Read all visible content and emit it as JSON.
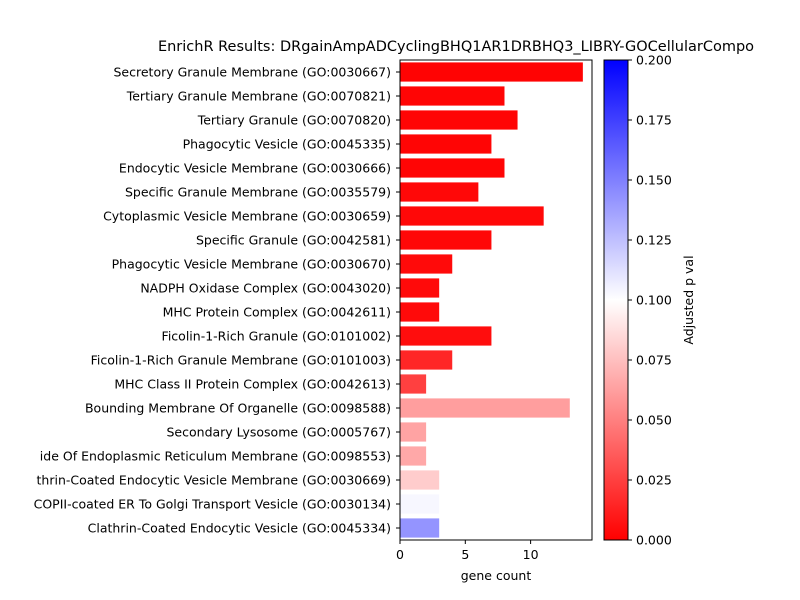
{
  "chart_data": {
    "type": "bar",
    "orientation": "horizontal",
    "title": "EnrichR Results: DRgainAmpADCyclingBHQ1AR1DRBHQ3_LIBRY-GOCellularCompo",
    "xlabel": "gene count",
    "ylabel": "",
    "xlim": [
      0,
      14.7
    ],
    "xticks": [
      0,
      5,
      10
    ],
    "grid": false,
    "categories": [
      "Secretory Granule Membrane (GO:0030667)",
      "Tertiary Granule Membrane (GO:0070821)",
      "Tertiary Granule (GO:0070820)",
      "Phagocytic Vesicle (GO:0045335)",
      "Endocytic Vesicle Membrane (GO:0030666)",
      "Specific Granule Membrane (GO:0035579)",
      "Cytoplasmic Vesicle Membrane (GO:0030659)",
      "Specific Granule (GO:0042581)",
      "Phagocytic Vesicle Membrane (GO:0030670)",
      "NADPH Oxidase Complex (GO:0043020)",
      "MHC Protein Complex (GO:0042611)",
      "Ficolin-1-Rich Granule (GO:0101002)",
      "Ficolin-1-Rich Granule Membrane (GO:0101003)",
      "MHC Class II Protein Complex (GO:0042613)",
      "Bounding Membrane Of Organelle (GO:0098588)",
      "Secondary Lysosome (GO:0005767)",
      "ide Of Endoplasmic Reticulum Membrane (GO:0098553)",
      "thrin-Coated Endocytic Vesicle Membrane (GO:0030669)",
      "COPII-coated ER To Golgi Transport Vesicle (GO:0030134)",
      "Clathrin-Coated Endocytic Vesicle (GO:0045334)"
    ],
    "values": [
      14,
      8,
      9,
      7,
      8,
      6,
      11,
      7,
      4,
      3,
      3,
      7,
      4,
      2,
      13,
      2,
      2,
      3,
      3,
      3
    ],
    "adjusted_p": [
      0.001,
      0.002,
      0.002,
      0.002,
      0.002,
      0.003,
      0.003,
      0.003,
      0.004,
      0.004,
      0.004,
      0.005,
      0.015,
      0.025,
      0.062,
      0.064,
      0.066,
      0.08,
      0.103,
      0.142
    ],
    "colorbar": {
      "label": "Adjusted p val",
      "min": 0.0,
      "max": 0.2,
      "colormap": "bwr_r",
      "ticks": [
        "0.000",
        "0.025",
        "0.050",
        "0.075",
        "0.100",
        "0.125",
        "0.150",
        "0.175",
        "0.200"
      ],
      "colors": {
        "low": "#ff0000",
        "mid": "#ffffff",
        "high": "#0000ff"
      }
    }
  }
}
